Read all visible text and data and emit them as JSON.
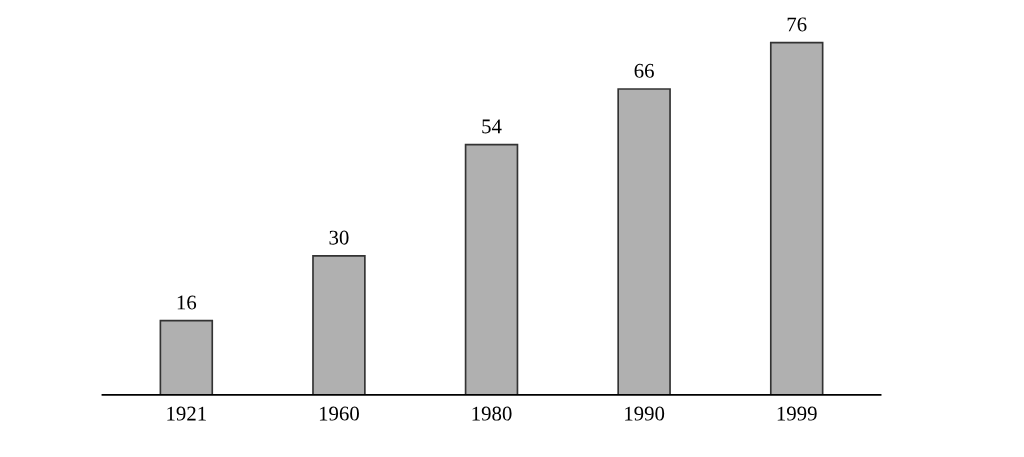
{
  "chart_data": {
    "type": "bar",
    "categories": [
      "1921",
      "1960",
      "1980",
      "1990",
      "1999"
    ],
    "values": [
      16,
      30,
      54,
      66,
      76
    ],
    "color": "#b0b0b0",
    "data_labels": true,
    "grid": false,
    "legend": false
  }
}
